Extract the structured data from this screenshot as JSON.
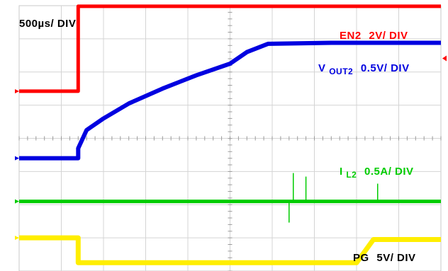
{
  "chart_data": {
    "type": "line",
    "time_scale_label": "500µs/ DIV",
    "x_unit": "ms",
    "xlim": [
      -0.7,
      4.3
    ],
    "grid": true,
    "series": [
      {
        "name": "EN2",
        "label_main": "EN2",
        "label_sub": "",
        "label_scale": "2V/ DIV",
        "color": "#ff0000",
        "ref_divs": -1.42,
        "values": [
          [
            -0.7,
            -1.42
          ],
          [
            0.0,
            -1.42
          ],
          [
            0.0,
            -3.98
          ],
          [
            4.3,
            -3.98
          ]
        ]
      },
      {
        "name": "VOUT2",
        "label_main": "V",
        "label_sub": "OUT2",
        "label_scale": "0.5V/ DIV",
        "color": "#0000e0",
        "ref_divs": 0.6,
        "values": [
          [
            -0.7,
            0.6
          ],
          [
            0.0,
            0.6
          ],
          [
            0.0,
            0.3
          ],
          [
            0.1,
            -0.25
          ],
          [
            0.3,
            -0.6
          ],
          [
            0.6,
            -1.05
          ],
          [
            1.0,
            -1.5
          ],
          [
            1.4,
            -1.9
          ],
          [
            1.8,
            -2.25
          ],
          [
            2.0,
            -2.6
          ],
          [
            2.25,
            -2.85
          ],
          [
            3.0,
            -2.88
          ],
          [
            4.3,
            -2.88
          ]
        ]
      },
      {
        "name": "IL2",
        "label_main": "I",
        "label_sub": "L2",
        "label_scale": "0.5A/ DIV",
        "color": "#00cc00",
        "ref_divs": 1.9,
        "values": [
          [
            -0.7,
            1.9
          ],
          [
            4.3,
            1.9
          ]
        ]
      },
      {
        "name": "PG",
        "label_main": "PG",
        "label_sub": "",
        "label_scale": "5V/ DIV",
        "color": "#ffee00",
        "ref_divs": 3.0,
        "values": [
          [
            -0.7,
            3.0
          ],
          [
            0.0,
            3.0
          ],
          [
            0.0,
            3.75
          ],
          [
            3.3,
            3.75
          ],
          [
            3.5,
            3.05
          ],
          [
            4.3,
            3.05
          ]
        ]
      }
    ]
  }
}
